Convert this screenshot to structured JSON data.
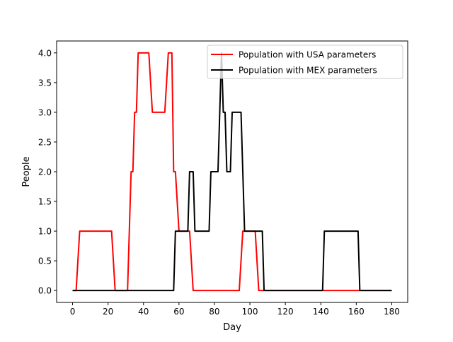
{
  "chart_data": {
    "type": "line",
    "title": "",
    "xlabel": "Day",
    "ylabel": "People",
    "xlim": [
      -9,
      189
    ],
    "ylim": [
      -0.2,
      4.2
    ],
    "xticks": [
      0,
      20,
      40,
      60,
      80,
      100,
      120,
      140,
      160,
      180
    ],
    "yticks": [
      0.0,
      0.5,
      1.0,
      1.5,
      2.0,
      2.5,
      3.0,
      3.5,
      4.0
    ],
    "ytick_labels": [
      "0.0",
      "0.5",
      "1.0",
      "1.5",
      "2.0",
      "2.5",
      "3.0",
      "3.5",
      "4.0"
    ],
    "grid": false,
    "legend_position": "top-right",
    "series": [
      {
        "name": "Population with USA parameters",
        "color": "#ff0000",
        "x": [
          0,
          2,
          4,
          22,
          24,
          31,
          33,
          34,
          35,
          36,
          37,
          43,
          45,
          52,
          54,
          56,
          57,
          58,
          60,
          66,
          68,
          94,
          96,
          103,
          105,
          180
        ],
        "y": [
          0,
          0,
          1,
          1,
          0,
          0,
          2,
          2,
          3,
          3,
          4,
          4,
          3,
          3,
          4,
          4,
          2,
          2,
          1,
          1,
          0,
          0,
          1,
          1,
          0,
          0
        ]
      },
      {
        "name": "Population with MEX parameters",
        "color": "#000000",
        "x": [
          0,
          57,
          58,
          65,
          66,
          68,
          69,
          77,
          78,
          82,
          83,
          84,
          85,
          86,
          87,
          89,
          90,
          95,
          97,
          107,
          108,
          141,
          142,
          161,
          162,
          180
        ],
        "y": [
          0,
          0,
          1,
          1,
          2,
          2,
          1,
          1,
          2,
          2,
          3,
          4,
          3,
          3,
          2,
          2,
          3,
          3,
          1,
          1,
          0,
          0,
          1,
          1,
          0,
          0
        ]
      }
    ]
  }
}
